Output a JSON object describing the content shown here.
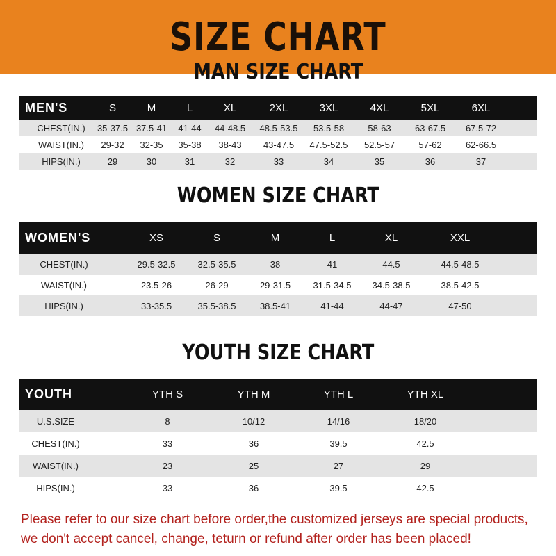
{
  "banner": {
    "title": "SIZE CHART",
    "color": "#e9821e"
  },
  "men": {
    "title": "MAN SIZE CHART",
    "header": [
      "MEN'S",
      "S",
      "M",
      "L",
      "XL",
      "2XL",
      "3XL",
      "4XL",
      "5XL",
      "6XL"
    ],
    "rows": [
      [
        "CHEST(IN.)",
        "35-37.5",
        "37.5-41",
        "41-44",
        "44-48.5",
        "48.5-53.5",
        "53.5-58",
        "58-63",
        "63-67.5",
        "67.5-72"
      ],
      [
        "WAIST(IN.)",
        "29-32",
        "32-35",
        "35-38",
        "38-43",
        "43-47.5",
        "47.5-52.5",
        "52.5-57",
        "57-62",
        "62-66.5"
      ],
      [
        "HIPS(IN.)",
        "29",
        "30",
        "31",
        "32",
        "33",
        "34",
        "35",
        "36",
        "37"
      ]
    ]
  },
  "women": {
    "title": "WOMEN SIZE CHART",
    "header": [
      "WOMEN'S",
      "XS",
      "S",
      "M",
      "L",
      "XL",
      "XXL"
    ],
    "rows": [
      [
        "CHEST(IN.)",
        "29.5-32.5",
        "32.5-35.5",
        "38",
        "41",
        "44.5",
        "44.5-48.5"
      ],
      [
        "WAIST(IN.)",
        "23.5-26",
        "26-29",
        "29-31.5",
        "31.5-34.5",
        "34.5-38.5",
        "38.5-42.5"
      ],
      [
        "HIPS(IN.)",
        "33-35.5",
        "35.5-38.5",
        "38.5-41",
        "41-44",
        "44-47",
        "47-50"
      ]
    ]
  },
  "youth": {
    "title": "YOUTH SIZE CHART",
    "header": [
      "YOUTH",
      "YTH S",
      "YTH M",
      "YTH L",
      "YTH XL"
    ],
    "rows": [
      [
        "U.S.SIZE",
        "8",
        "10/12",
        "14/16",
        "18/20"
      ],
      [
        "CHEST(IN.)",
        "33",
        "36",
        "39.5",
        "42.5"
      ],
      [
        "WAIST(IN.)",
        "23",
        "25",
        "27",
        "29"
      ],
      [
        "HIPS(IN.)",
        "33",
        "36",
        "39.5",
        "42.5"
      ]
    ]
  },
  "note": {
    "line1": "Please refer to our size chart before order,the customized jerseys are special products,",
    "line2": "we don't accept cancel, change, teturn or refund after order has been placed!",
    "color": "#b3221e"
  }
}
